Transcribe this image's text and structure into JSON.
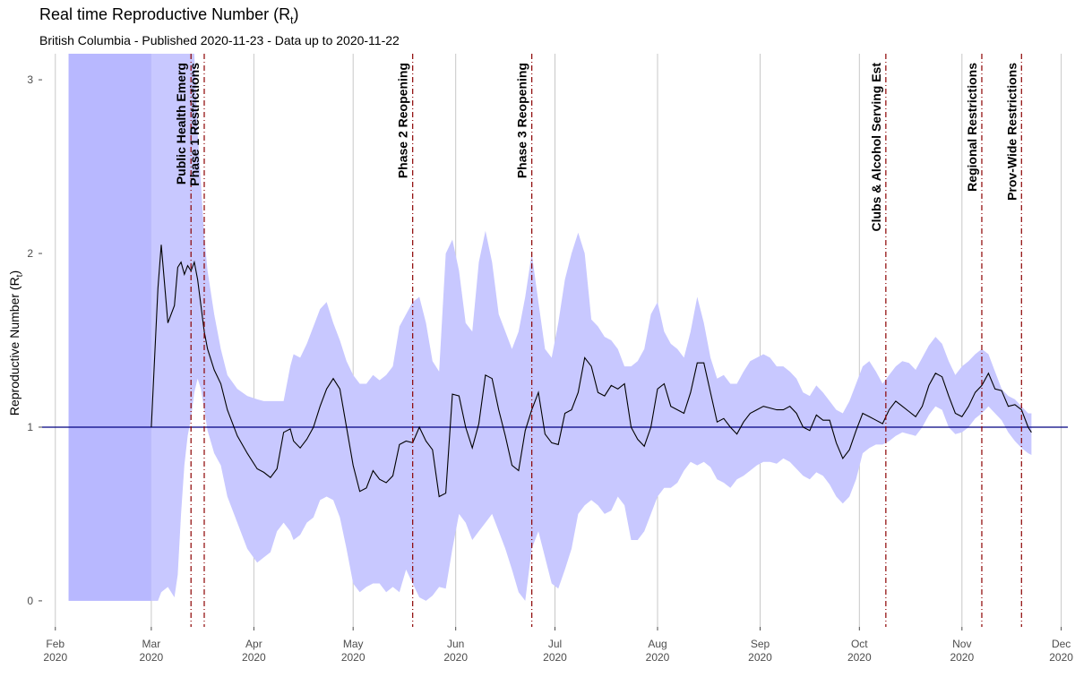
{
  "title": "Real time Reproductive Number (R",
  "title_sub": "t",
  "title_end": ")",
  "subtitle": "British Columbia - Published 2020-11-23 - Data up to 2020-11-22",
  "chart_data": {
    "type": "area",
    "ylabel": "Reproductive Number (R",
    "ylabel_sub": "t",
    "ylabel_end": ")",
    "ylim": [
      -0.15,
      3.15
    ],
    "xlim": [
      "2020-01-28",
      "2020-12-03"
    ],
    "y_ticks": [
      0,
      1,
      2,
      3
    ],
    "x_ticks": [
      {
        "date": "2020-02-01",
        "month": "Feb",
        "year": "2020"
      },
      {
        "date": "2020-03-01",
        "month": "Mar",
        "year": "2020"
      },
      {
        "date": "2020-04-01",
        "month": "Apr",
        "year": "2020"
      },
      {
        "date": "2020-05-01",
        "month": "May",
        "year": "2020"
      },
      {
        "date": "2020-06-01",
        "month": "Jun",
        "year": "2020"
      },
      {
        "date": "2020-07-01",
        "month": "Jul",
        "year": "2020"
      },
      {
        "date": "2020-08-01",
        "month": "Aug",
        "year": "2020"
      },
      {
        "date": "2020-09-01",
        "month": "Sep",
        "year": "2020"
      },
      {
        "date": "2020-10-01",
        "month": "Oct",
        "year": "2020"
      },
      {
        "date": "2020-11-01",
        "month": "Nov",
        "year": "2020"
      },
      {
        "date": "2020-12-01",
        "month": "Dec",
        "year": "2020"
      }
    ],
    "grid": true,
    "reference_line": 1,
    "colors": {
      "band": "#c8c8ff",
      "band_dark": "#b8b8ff",
      "line": "#000000",
      "reference": "#000080",
      "event": "#8b0000"
    },
    "shaded_period": [
      "2020-02-05",
      "2020-03-01"
    ],
    "series": {
      "x": [
        "2020-03-01",
        "2020-03-03",
        "2020-03-04",
        "2020-03-06",
        "2020-03-08",
        "2020-03-09",
        "2020-03-10",
        "2020-03-11",
        "2020-03-12",
        "2020-03-13",
        "2020-03-14",
        "2020-03-15",
        "2020-03-16",
        "2020-03-17",
        "2020-03-18",
        "2020-03-20",
        "2020-03-22",
        "2020-03-24",
        "2020-03-27",
        "2020-03-30",
        "2020-04-02",
        "2020-04-04",
        "2020-04-06",
        "2020-04-08",
        "2020-04-10",
        "2020-04-12",
        "2020-04-13",
        "2020-04-15",
        "2020-04-17",
        "2020-04-19",
        "2020-04-21",
        "2020-04-23",
        "2020-04-25",
        "2020-04-27",
        "2020-04-29",
        "2020-05-01",
        "2020-05-03",
        "2020-05-05",
        "2020-05-07",
        "2020-05-09",
        "2020-05-11",
        "2020-05-13",
        "2020-05-15",
        "2020-05-17",
        "2020-05-19",
        "2020-05-21",
        "2020-05-23",
        "2020-05-25",
        "2020-05-27",
        "2020-05-29",
        "2020-05-31",
        "2020-06-02",
        "2020-06-04",
        "2020-06-06",
        "2020-06-08",
        "2020-06-10",
        "2020-06-12",
        "2020-06-14",
        "2020-06-16",
        "2020-06-18",
        "2020-06-20",
        "2020-06-22",
        "2020-06-24",
        "2020-06-26",
        "2020-06-28",
        "2020-06-30",
        "2020-07-02",
        "2020-07-04",
        "2020-07-06",
        "2020-07-08",
        "2020-07-10",
        "2020-07-12",
        "2020-07-14",
        "2020-07-16",
        "2020-07-18",
        "2020-07-20",
        "2020-07-22",
        "2020-07-24",
        "2020-07-26",
        "2020-07-28",
        "2020-07-30",
        "2020-08-01",
        "2020-08-03",
        "2020-08-05",
        "2020-08-07",
        "2020-08-09",
        "2020-08-11",
        "2020-08-13",
        "2020-08-15",
        "2020-08-17",
        "2020-08-19",
        "2020-08-21",
        "2020-08-23",
        "2020-08-25",
        "2020-08-27",
        "2020-08-29",
        "2020-08-31",
        "2020-09-02",
        "2020-09-04",
        "2020-09-06",
        "2020-09-08",
        "2020-09-10",
        "2020-09-12",
        "2020-09-14",
        "2020-09-16",
        "2020-09-18",
        "2020-09-20",
        "2020-09-22",
        "2020-09-24",
        "2020-09-26",
        "2020-09-28",
        "2020-09-30",
        "2020-10-02",
        "2020-10-04",
        "2020-10-06",
        "2020-10-08",
        "2020-10-10",
        "2020-10-12",
        "2020-10-14",
        "2020-10-16",
        "2020-10-18",
        "2020-10-20",
        "2020-10-22",
        "2020-10-24",
        "2020-10-26",
        "2020-10-28",
        "2020-10-30",
        "2020-11-01",
        "2020-11-03",
        "2020-11-05",
        "2020-11-07",
        "2020-11-09",
        "2020-11-11",
        "2020-11-13",
        "2020-11-15",
        "2020-11-17",
        "2020-11-19",
        "2020-11-21",
        "2020-11-22"
      ],
      "rt": [
        1.0,
        1.8,
        2.05,
        1.6,
        1.7,
        1.92,
        1.95,
        1.88,
        1.93,
        1.9,
        1.95,
        1.85,
        1.7,
        1.55,
        1.45,
        1.33,
        1.25,
        1.1,
        0.95,
        0.85,
        0.76,
        0.74,
        0.71,
        0.76,
        0.97,
        0.99,
        0.92,
        0.88,
        0.93,
        1.0,
        1.12,
        1.22,
        1.28,
        1.22,
        1.0,
        0.78,
        0.63,
        0.65,
        0.75,
        0.7,
        0.68,
        0.72,
        0.9,
        0.92,
        0.91,
        1.0,
        0.92,
        0.87,
        0.6,
        0.62,
        1.19,
        1.18,
        1.0,
        0.88,
        1.02,
        1.3,
        1.28,
        1.1,
        0.95,
        0.78,
        0.75,
        0.98,
        1.1,
        1.2,
        0.96,
        0.91,
        0.9,
        1.08,
        1.1,
        1.2,
        1.4,
        1.35,
        1.2,
        1.18,
        1.24,
        1.22,
        1.25,
        1.0,
        0.93,
        0.89,
        1.0,
        1.22,
        1.25,
        1.12,
        1.1,
        1.08,
        1.2,
        1.37,
        1.37,
        1.2,
        1.03,
        1.05,
        1.0,
        0.96,
        1.03,
        1.08,
        1.1,
        1.12,
        1.11,
        1.1,
        1.1,
        1.12,
        1.08,
        1.0,
        0.98,
        1.07,
        1.04,
        1.04,
        0.91,
        0.82,
        0.87,
        0.98,
        1.08,
        1.06,
        1.04,
        1.02,
        1.1,
        1.15,
        1.12,
        1.09,
        1.06,
        1.12,
        1.24,
        1.31,
        1.29,
        1.18,
        1.08,
        1.06,
        1.12,
        1.2,
        1.24,
        1.31,
        1.22,
        1.21,
        1.12,
        1.13,
        1.1,
        1.0,
        0.97
      ],
      "lower": [
        0.0,
        0.0,
        0.05,
        0.08,
        0.02,
        0.15,
        0.5,
        0.78,
        0.95,
        1.05,
        1.2,
        1.28,
        1.22,
        1.1,
        0.98,
        0.85,
        0.78,
        0.6,
        0.45,
        0.3,
        0.22,
        0.25,
        0.28,
        0.4,
        0.45,
        0.4,
        0.35,
        0.38,
        0.45,
        0.48,
        0.58,
        0.6,
        0.58,
        0.48,
        0.3,
        0.1,
        0.05,
        0.08,
        0.1,
        0.1,
        0.05,
        0.08,
        0.05,
        0.18,
        0.1,
        0.02,
        0.0,
        0.03,
        0.08,
        0.07,
        0.3,
        0.5,
        0.45,
        0.35,
        0.4,
        0.45,
        0.5,
        0.4,
        0.3,
        0.18,
        0.05,
        0.0,
        0.3,
        0.4,
        0.25,
        0.1,
        0.07,
        0.18,
        0.3,
        0.5,
        0.55,
        0.58,
        0.55,
        0.5,
        0.52,
        0.6,
        0.55,
        0.35,
        0.35,
        0.4,
        0.5,
        0.6,
        0.65,
        0.65,
        0.68,
        0.75,
        0.8,
        0.78,
        0.8,
        0.77,
        0.7,
        0.68,
        0.65,
        0.7,
        0.72,
        0.75,
        0.78,
        0.8,
        0.8,
        0.79,
        0.82,
        0.8,
        0.76,
        0.72,
        0.7,
        0.74,
        0.72,
        0.67,
        0.6,
        0.56,
        0.6,
        0.7,
        0.85,
        0.88,
        0.9,
        0.9,
        0.92,
        0.95,
        0.97,
        0.96,
        0.95,
        1.0,
        1.07,
        1.12,
        1.1,
        1.0,
        0.96,
        0.97,
        1.0,
        1.05,
        1.08,
        1.12,
        1.08,
        1.04,
        0.97,
        0.92,
        0.88,
        0.85,
        0.84
      ],
      "upper": [
        3.15,
        3.15,
        3.15,
        3.15,
        3.15,
        3.15,
        3.15,
        3.15,
        3.15,
        3.15,
        3.15,
        2.7,
        2.4,
        2.1,
        1.9,
        1.65,
        1.45,
        1.3,
        1.22,
        1.18,
        1.16,
        1.15,
        1.15,
        1.15,
        1.15,
        1.35,
        1.42,
        1.4,
        1.48,
        1.58,
        1.68,
        1.72,
        1.6,
        1.5,
        1.38,
        1.3,
        1.25,
        1.25,
        1.3,
        1.27,
        1.3,
        1.35,
        1.58,
        1.65,
        1.72,
        1.75,
        1.6,
        1.38,
        1.32,
        2.0,
        2.08,
        1.9,
        1.6,
        1.55,
        1.95,
        2.13,
        1.95,
        1.65,
        1.55,
        1.45,
        1.55,
        1.75,
        2.0,
        1.72,
        1.45,
        1.4,
        1.6,
        1.85,
        2.0,
        2.12,
        2.0,
        1.62,
        1.58,
        1.52,
        1.5,
        1.45,
        1.35,
        1.35,
        1.38,
        1.45,
        1.65,
        1.72,
        1.55,
        1.48,
        1.45,
        1.4,
        1.55,
        1.75,
        1.6,
        1.4,
        1.28,
        1.3,
        1.25,
        1.25,
        1.32,
        1.38,
        1.4,
        1.42,
        1.4,
        1.35,
        1.35,
        1.32,
        1.28,
        1.2,
        1.18,
        1.24,
        1.2,
        1.15,
        1.1,
        1.08,
        1.15,
        1.25,
        1.35,
        1.38,
        1.32,
        1.25,
        1.3,
        1.35,
        1.38,
        1.37,
        1.33,
        1.4,
        1.47,
        1.52,
        1.48,
        1.38,
        1.3,
        1.35,
        1.38,
        1.42,
        1.45,
        1.42,
        1.32,
        1.22,
        1.18,
        1.16,
        1.12,
        1.08,
        1.08
      ]
    },
    "events": [
      {
        "date": "2020-03-13",
        "label": "Public Health Emerg",
        "color": "#0000aa"
      },
      {
        "date": "2020-03-17",
        "label": "Phase 1 Restrictions",
        "color": "#000000"
      },
      {
        "date": "2020-05-19",
        "label": "Phase 2 Reopening",
        "color": "#000000"
      },
      {
        "date": "2020-06-24",
        "label": "Phase 3 Reopening",
        "color": "#000000"
      },
      {
        "date": "2020-10-09",
        "label": "Clubs & Alcohol Serving Est",
        "color": "#000000"
      },
      {
        "date": "2020-11-07",
        "label": "Regional Restrictions",
        "color": "#000000"
      },
      {
        "date": "2020-11-19",
        "label": "Prov-Wide Restrictions",
        "color": "#000000"
      }
    ]
  }
}
